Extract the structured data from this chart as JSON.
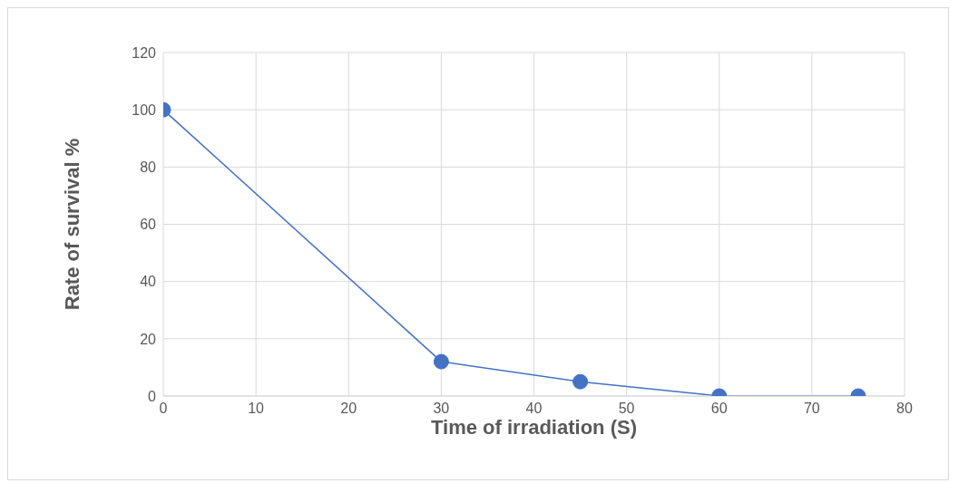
{
  "chart_data": {
    "type": "line",
    "xlabel": "Time of irradiation (S)",
    "ylabel": "Rate of survival %",
    "x": [
      0,
      30,
      45,
      60,
      75
    ],
    "series": [
      {
        "color": "#4472c4",
        "values": [
          100,
          12,
          5,
          0,
          0
        ]
      }
    ],
    "xlim": [
      0,
      80
    ],
    "xticks": [
      0,
      10,
      20,
      30,
      40,
      50,
      60,
      70,
      80
    ],
    "ylim": [
      0,
      120
    ],
    "yticks": [
      0,
      20,
      40,
      60,
      80,
      100,
      120
    ],
    "grid": true,
    "legend": false,
    "marker": "circle",
    "line_style": "solid"
  }
}
